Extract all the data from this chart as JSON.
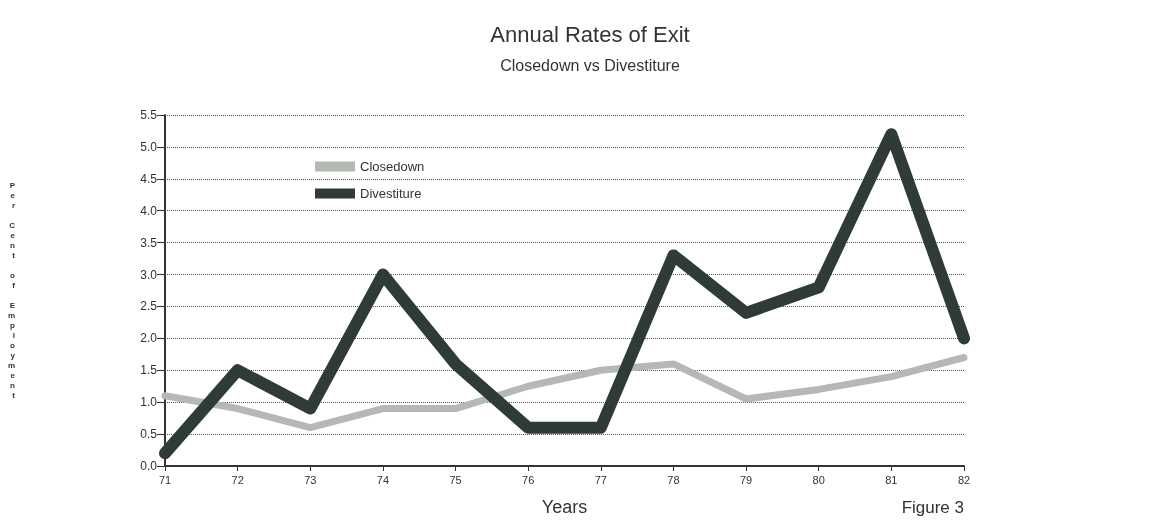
{
  "chart_data": {
    "type": "line",
    "title": "Annual Rates of Exit",
    "subtitle": "Closedown vs Divestiture",
    "xlabel": "Years",
    "ylabel": "Per Cent of Employment",
    "annotations": [
      "Figure 3"
    ],
    "categories": [
      "71",
      "72",
      "73",
      "74",
      "75",
      "76",
      "77",
      "78",
      "79",
      "80",
      "81",
      "82"
    ],
    "series": [
      {
        "name": "Closedown",
        "color": "#b4b9b4",
        "values": [
          1.1,
          0.9,
          0.6,
          0.9,
          0.9,
          1.25,
          1.5,
          1.6,
          1.05,
          1.2,
          1.4,
          1.7
        ]
      },
      {
        "name": "Divestiture",
        "color": "#2f3b35",
        "values": [
          0.2,
          1.5,
          0.9,
          3.0,
          1.6,
          0.6,
          0.6,
          3.3,
          2.4,
          2.8,
          5.2,
          2.0
        ]
      }
    ],
    "ylim": [
      0,
      5.5
    ],
    "yticks": [
      {
        "value": 0,
        "label": "0.0"
      },
      {
        "value": 0.5,
        "label": "0.5"
      },
      {
        "value": 1,
        "label": "1.0"
      },
      {
        "value": 1.5,
        "label": "1.5"
      },
      {
        "value": 2,
        "label": "2.0"
      },
      {
        "value": 2.5,
        "label": "2.5"
      },
      {
        "value": 3,
        "label": "3.0"
      },
      {
        "value": 3.5,
        "label": "3.5"
      },
      {
        "value": 4,
        "label": "4.0"
      },
      {
        "value": 4.5,
        "label": "4.5"
      },
      {
        "value": 5,
        "label": "5.0"
      },
      {
        "value": 5.5,
        "label": "5.5"
      }
    ],
    "grid": "y",
    "legend": "top left",
    "marker": "none",
    "line_style": "solid"
  }
}
